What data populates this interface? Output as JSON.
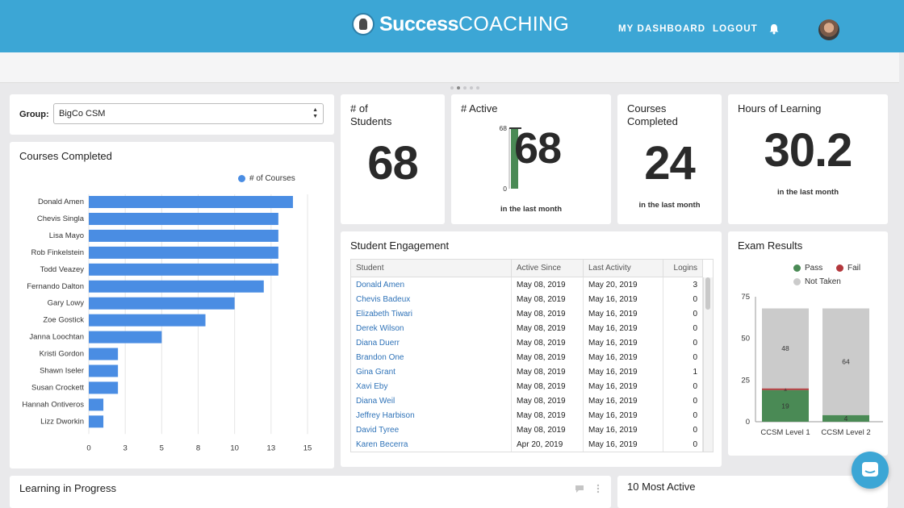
{
  "header": {
    "logo_bold": "Success",
    "logo_light": "COACHING",
    "nav": {
      "dashboard": "MY DASHBOARD",
      "logout": "LOGOUT"
    },
    "bell_icon": "bell-icon",
    "avatar_icon": "user-avatar"
  },
  "colors": {
    "brand": "#3ca6d5",
    "bar": "#4a8de3",
    "pass": "#4a8a55",
    "fail": "#b3373c",
    "not_taken": "#cbcbcb"
  },
  "group": {
    "label": "Group:",
    "value": "BigCo CSM"
  },
  "courses_completed": {
    "title": "Courses Completed",
    "legend": "# of Courses"
  },
  "stats": {
    "students": {
      "title_line1": "# of",
      "title_line2": "Students",
      "value": "68"
    },
    "active": {
      "title": "# Active",
      "value": "68",
      "gauge_max": "68",
      "gauge_min": "0",
      "caption": "in the last month"
    },
    "completed": {
      "title_line1": "Courses",
      "title_line2": "Completed",
      "value": "24",
      "caption": "in the last month"
    },
    "hours": {
      "title": "Hours of Learning",
      "value": "30.2",
      "caption": "in the last month"
    }
  },
  "engagement": {
    "title": "Student Engagement",
    "columns": [
      "Student",
      "Active Since",
      "Last Activity",
      "Logins"
    ],
    "rows": [
      [
        "Donald Amen",
        "May 08, 2019",
        "May 20, 2019",
        "3"
      ],
      [
        "Chevis Badeux",
        "May 08, 2019",
        "May 16, 2019",
        "0"
      ],
      [
        "Elizabeth Tiwari",
        "May 08, 2019",
        "May 16, 2019",
        "0"
      ],
      [
        "Derek Wilson",
        "May 08, 2019",
        "May 16, 2019",
        "0"
      ],
      [
        "Diana Duerr",
        "May 08, 2019",
        "May 16, 2019",
        "0"
      ],
      [
        "Brandon One",
        "May 08, 2019",
        "May 16, 2019",
        "0"
      ],
      [
        "Gina Grant",
        "May 08, 2019",
        "May 16, 2019",
        "1"
      ],
      [
        "Xavi Eby",
        "May 08, 2019",
        "May 16, 2019",
        "0"
      ],
      [
        "Diana Weil",
        "May 08, 2019",
        "May 16, 2019",
        "0"
      ],
      [
        "Jeffrey Harbison",
        "May 08, 2019",
        "May 16, 2019",
        "0"
      ],
      [
        "David Tyree",
        "May 08, 2019",
        "May 16, 2019",
        "0"
      ],
      [
        "Karen Becerra",
        "Apr 20, 2019",
        "May 16, 2019",
        "0"
      ]
    ]
  },
  "exam": {
    "title": "Exam Results",
    "legend": {
      "pass": "Pass",
      "fail": "Fail",
      "not_taken": "Not Taken"
    }
  },
  "bottom": {
    "learning_title": "Learning in Progress",
    "most_active_title": "10 Most Active",
    "comment_icon": "comment-icon",
    "more_icon": "kebab-menu-icon"
  },
  "chart_data": [
    {
      "type": "bar",
      "orientation": "horizontal",
      "title": "Courses Completed",
      "categories": [
        "Donald Amen",
        "Chevis Singla",
        "Lisa Mayo",
        "Rob Finkelstein",
        "Todd Veazey",
        "Fernando Dalton",
        "Gary Lowy",
        "Zoe Gostick",
        "Janna Loochtan",
        "Kristi Gordon",
        "Shawn Iseler",
        "Susan Crockett",
        "Hannah Ontiveros",
        "Lizz Dworkin"
      ],
      "series": [
        {
          "name": "# of Courses",
          "values": [
            14,
            13,
            13,
            13,
            13,
            12,
            10,
            8,
            5,
            2,
            2,
            2,
            1,
            1
          ]
        }
      ],
      "xlim": [
        0,
        15
      ],
      "xticks": [
        "0",
        "3",
        "5",
        "8",
        "10",
        "13",
        "15"
      ],
      "grid": true,
      "legend": "top-right"
    },
    {
      "type": "bar",
      "stacked": true,
      "title": "Exam Results",
      "categories": [
        "CCSM Level 1",
        "CCSM Level 2"
      ],
      "series": [
        {
          "name": "Pass",
          "values": [
            19,
            4
          ]
        },
        {
          "name": "Fail",
          "values": [
            1,
            0
          ]
        },
        {
          "name": "Not Taken",
          "values": [
            48,
            64
          ]
        }
      ],
      "ylim": [
        0,
        75
      ],
      "yticks": [
        "0",
        "25",
        "50",
        "75"
      ],
      "legend": "top"
    },
    {
      "type": "bar",
      "title": "# Active",
      "categories": [
        ""
      ],
      "values": [
        68
      ],
      "ylim": [
        0,
        68
      ]
    }
  ]
}
